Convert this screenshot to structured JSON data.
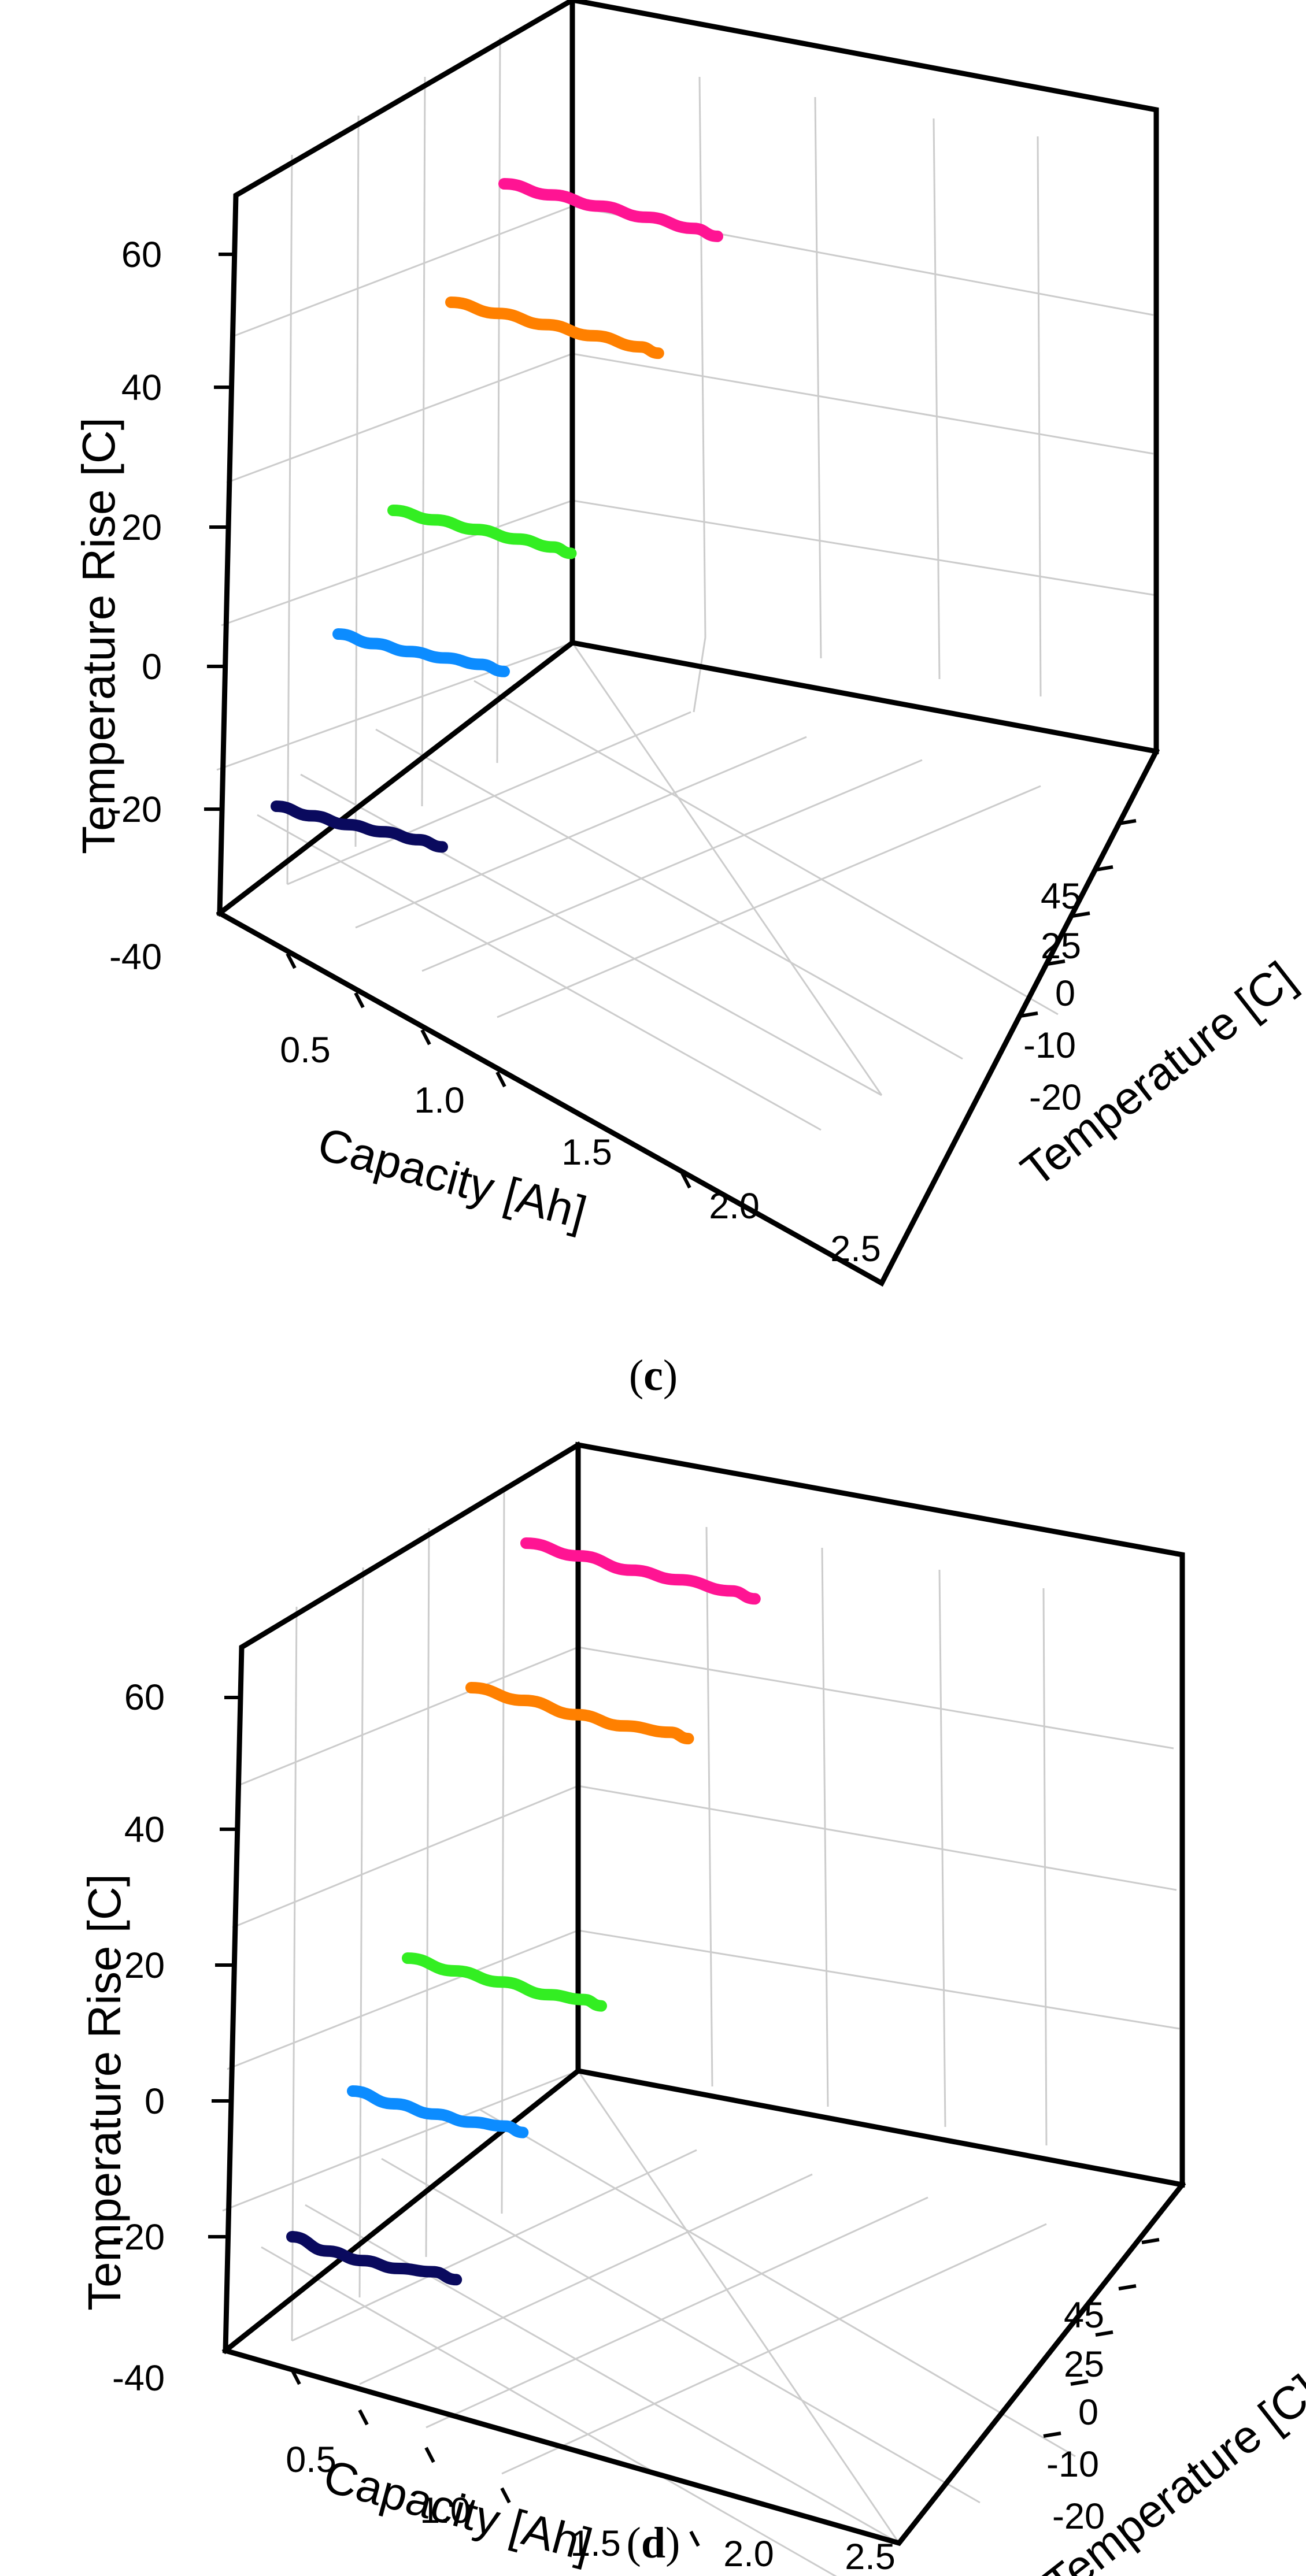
{
  "chart_data": [
    {
      "panel_label": "c",
      "type": "line",
      "projection": "3d",
      "xlabel": "Capacity [Ah]",
      "ylabel": "Temperature [C]",
      "zlabel": "Temperature Rise [C]",
      "x_ticks": [
        "0.5",
        "1.0",
        "1.5",
        "2.0",
        "2.5"
      ],
      "y_ticks": [
        "-20",
        "-10",
        "0",
        "25",
        "45"
      ],
      "z_ticks": [
        "60",
        "40",
        "20",
        "0",
        "-20",
        "-40"
      ],
      "xlim": [
        0.2,
        2.6
      ],
      "zlim": [
        -40,
        60
      ],
      "series": [
        {
          "name": "-20",
          "color": "#0a0a5e",
          "x": [
            0.0,
            0.3,
            0.6,
            0.9,
            1.2,
            1.4
          ],
          "z": [
            -12,
            -12,
            -12.5,
            -14,
            -15,
            -14.5
          ]
        },
        {
          "name": "-10",
          "color": "#0c8cff",
          "x": [
            0.0,
            0.3,
            0.6,
            0.9,
            1.2,
            1.4
          ],
          "z": [
            4,
            4,
            3,
            1,
            -1,
            -0.5
          ]
        },
        {
          "name": "0",
          "color": "#33ee22",
          "x": [
            0.0,
            0.35,
            0.7,
            1.05,
            1.35,
            1.5
          ],
          "z": [
            17,
            16,
            15,
            14,
            13,
            14
          ]
        },
        {
          "name": "25",
          "color": "#ff8000",
          "x": [
            0.0,
            0.4,
            0.8,
            1.2,
            1.6,
            1.75
          ],
          "z": [
            42,
            41,
            40,
            39,
            38,
            39
          ]
        },
        {
          "name": "45",
          "color": "#ff1493",
          "x": [
            0.0,
            0.4,
            0.8,
            1.2,
            1.6,
            1.8
          ],
          "z": [
            61,
            60,
            59,
            58,
            57,
            58
          ]
        }
      ]
    },
    {
      "panel_label": "d",
      "type": "line",
      "projection": "3d",
      "xlabel": "Capacity [Ah]",
      "ylabel": "Temperature [C]",
      "zlabel": "Temperature Rise [C]",
      "x_ticks": [
        "0.5",
        "1.0",
        "1.5",
        "2.0",
        "2.5"
      ],
      "y_ticks": [
        "-20",
        "-10",
        "0",
        "25",
        "45"
      ],
      "z_ticks": [
        "60",
        "40",
        "20",
        "0",
        "-20",
        "-40"
      ],
      "xlim": [
        0.2,
        2.6
      ],
      "zlim": [
        -40,
        60
      ],
      "series": [
        {
          "name": "-20",
          "color": "#0a0a5e",
          "x": [
            0.0,
            0.3,
            0.6,
            0.9,
            1.2,
            1.4
          ],
          "z": [
            -13,
            -10,
            -10,
            -11,
            -15,
            -14
          ]
        },
        {
          "name": "-10",
          "color": "#0c8cff",
          "x": [
            0.0,
            0.35,
            0.7,
            1.0,
            1.3,
            1.45
          ],
          "z": [
            3,
            4,
            3.5,
            2.5,
            -1,
            0
          ]
        },
        {
          "name": "0",
          "color": "#33ee22",
          "x": [
            0.0,
            0.4,
            0.8,
            1.2,
            1.5,
            1.65
          ],
          "z": [
            19,
            19,
            18,
            18,
            15,
            16
          ]
        },
        {
          "name": "25",
          "color": "#ff8000",
          "x": [
            0.0,
            0.45,
            0.9,
            1.3,
            1.7,
            1.85
          ],
          "z": [
            46,
            45,
            45,
            44,
            40,
            41
          ]
        },
        {
          "name": "45",
          "color": "#ff1493",
          "x": [
            0.0,
            0.45,
            0.9,
            1.3,
            1.75,
            1.95
          ],
          "z": [
            66,
            65,
            65,
            63,
            61,
            62
          ]
        }
      ]
    }
  ]
}
